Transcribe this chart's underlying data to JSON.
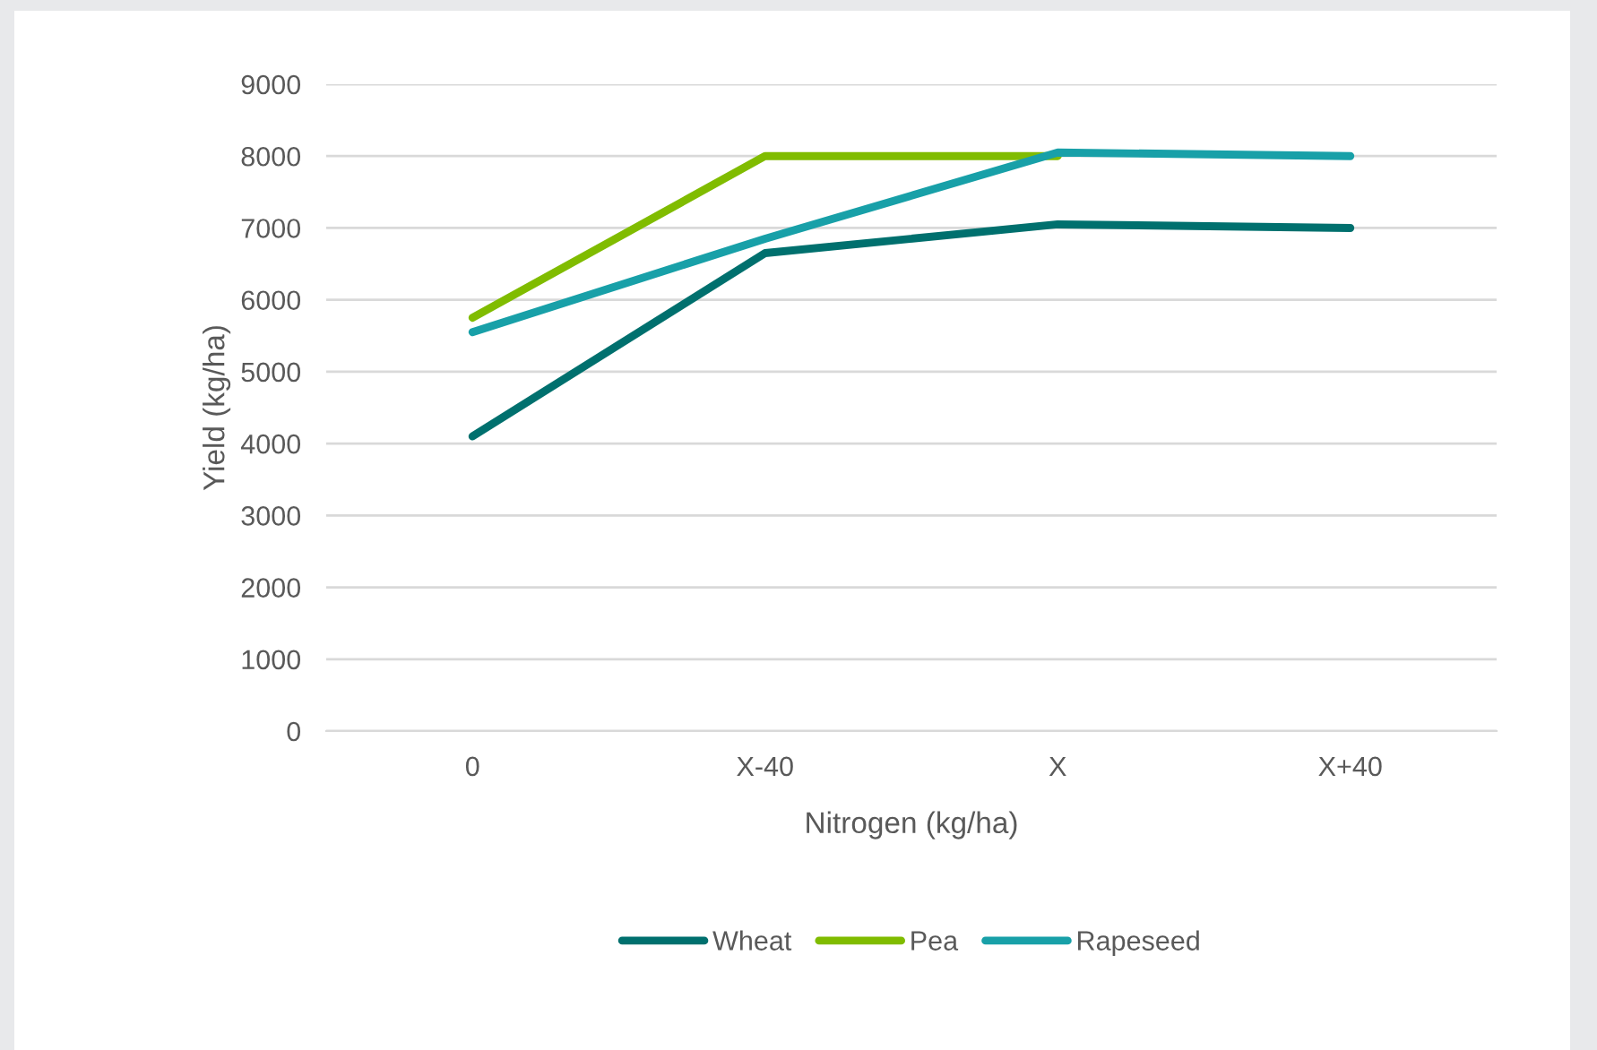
{
  "chart_data": {
    "type": "line",
    "xlabel": "Nitrogen (kg/ha)",
    "ylabel": "Yield (kg/ha)",
    "categories": [
      "0",
      "X-40",
      "X",
      "X+40"
    ],
    "series": [
      {
        "name": "Wheat",
        "color": "#00706e",
        "values": [
          4100,
          6650,
          7050,
          7000
        ]
      },
      {
        "name": "Pea",
        "color": "#80bc00",
        "values": [
          5750,
          8000,
          8000,
          null
        ]
      },
      {
        "name": "Rapeseed",
        "color": "#18a0a8",
        "values": [
          5550,
          6850,
          8050,
          8000
        ]
      }
    ],
    "ylim": [
      0,
      9000
    ],
    "yticks": [
      0,
      1000,
      2000,
      3000,
      4000,
      5000,
      6000,
      7000,
      8000,
      9000
    ],
    "grid": "y",
    "legend": "bottom",
    "marker": "none",
    "line_style": "solid"
  }
}
